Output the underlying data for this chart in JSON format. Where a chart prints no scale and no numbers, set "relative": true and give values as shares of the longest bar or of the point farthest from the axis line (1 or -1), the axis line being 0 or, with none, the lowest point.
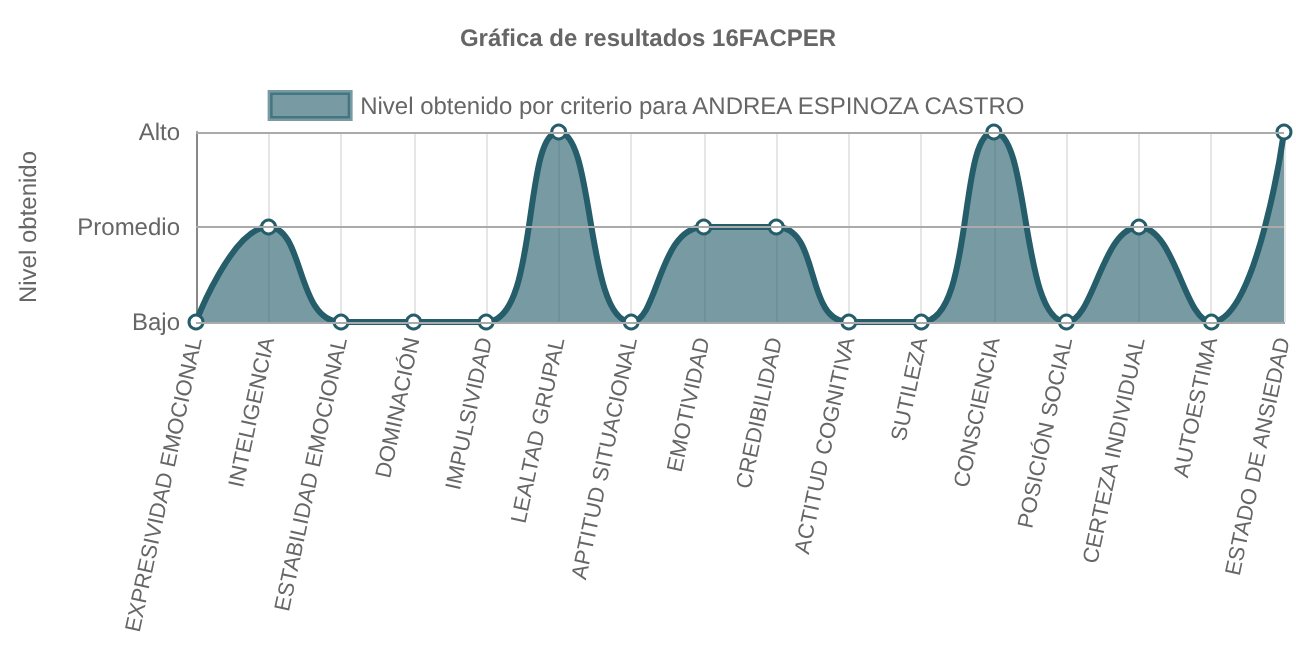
{
  "chart_data": {
    "type": "area",
    "title": "Gráfica de resultados 16FACPER",
    "ylabel": "Nivel obtenido",
    "categories": [
      "EXPRESIVIDAD EMOCIONAL",
      "INTELIGENCIA",
      "ESTABILIDAD EMOCIONAL",
      "DOMINACIÓN",
      "IMPULSIVIDAD",
      "LEALTAD GRUPAL",
      "APTITUD SITUACIONAL",
      "EMOTIVIDAD",
      "CREDIBILIDAD",
      "ACTITUD COGNITIVA",
      "SUTILEZA",
      "CONSCIENCIA",
      "POSICIÓN SOCIAL",
      "CERTEZA INDIVIDUAL",
      "AUTOESTIMA",
      "ESTADO DE ANSIEDAD"
    ],
    "series": [
      {
        "name": "Nivel obtenido por criterio para ANDREA ESPINOZA CASTRO",
        "color": "#255e6a",
        "values": [
          0,
          0.5,
          0,
          0,
          0,
          1,
          0,
          0.5,
          0.5,
          0,
          0,
          1,
          0,
          0.5,
          0,
          1
        ]
      }
    ],
    "relative": true,
    "ref_lines": [
      {
        "axis": "y",
        "value": 0,
        "label": "Bajo"
      },
      {
        "axis": "y",
        "value": 0.5,
        "label": "Promedio"
      },
      {
        "axis": "y",
        "value": 1,
        "label": "Alto"
      }
    ],
    "grid": "x",
    "legend": "top",
    "marker": "circle",
    "line_style": "solid"
  }
}
